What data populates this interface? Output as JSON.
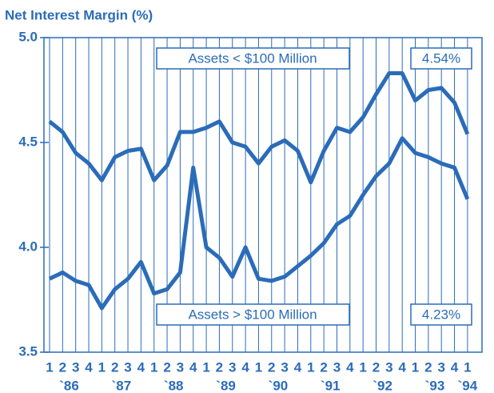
{
  "chart_data": {
    "type": "line",
    "title": "Net Interest Margin (%)",
    "categories": [
      "1",
      "2",
      "3",
      "4",
      "1",
      "2",
      "3",
      "4",
      "1",
      "2",
      "3",
      "4",
      "1",
      "2",
      "3",
      "4",
      "1",
      "2",
      "3",
      "4",
      "1",
      "2",
      "3",
      "4",
      "1",
      "2",
      "3",
      "4",
      "1",
      "2",
      "3",
      "4",
      "1"
    ],
    "year_labels": [
      "`86",
      "`87",
      "`88",
      "`89",
      "`90",
      "`91",
      "`92",
      "`93",
      "`94"
    ],
    "series": [
      {
        "name": "Assets < $100 Million",
        "color": "#2b6cb8",
        "end_label": "4.54%",
        "values": [
          4.6,
          4.55,
          4.45,
          4.4,
          4.32,
          4.43,
          4.46,
          4.47,
          4.32,
          4.39,
          4.55,
          4.55,
          4.57,
          4.6,
          4.5,
          4.48,
          4.4,
          4.48,
          4.51,
          4.46,
          4.31,
          4.46,
          4.57,
          4.55,
          4.62,
          4.73,
          4.83,
          4.83,
          4.7,
          4.75,
          4.76,
          4.69,
          4.54
        ]
      },
      {
        "name": "Assets > $100 Million",
        "color": "#2b6cb8",
        "end_label": "4.23%",
        "values": [
          3.85,
          3.88,
          3.84,
          3.82,
          3.71,
          3.8,
          3.85,
          3.93,
          3.78,
          3.8,
          3.88,
          4.38,
          4.0,
          3.95,
          3.86,
          4.0,
          3.85,
          3.84,
          3.86,
          3.91,
          3.96,
          4.02,
          4.11,
          4.15,
          4.25,
          4.34,
          4.4,
          4.52,
          4.45,
          4.43,
          4.4,
          4.38,
          4.23
        ]
      }
    ],
    "ylim": [
      3.5,
      5.0
    ],
    "yticks": [
      3.5,
      {
        "value": 4,
        "label": "4.0"
      },
      4.5,
      {
        "value": 5,
        "label": "5.0"
      }
    ],
    "grid": true
  }
}
